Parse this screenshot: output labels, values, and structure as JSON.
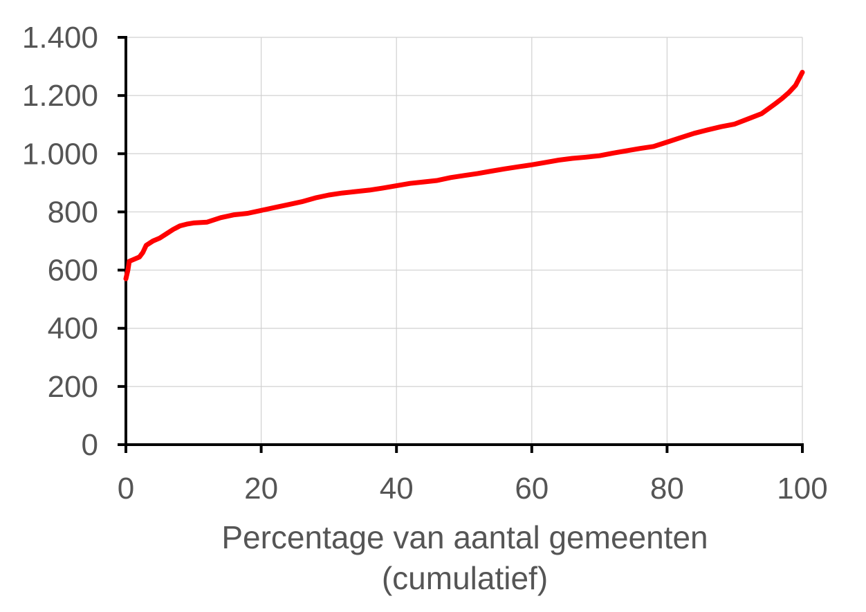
{
  "chart_data": {
    "type": "line",
    "xlabel_line1": "Percentage van aantal gemeenten",
    "xlabel_line2": "(cumulatief)",
    "ylabel": "",
    "xlim": [
      0,
      100
    ],
    "ylim": [
      0,
      1400
    ],
    "x_ticks": [
      0,
      20,
      40,
      60,
      80,
      100
    ],
    "x_tick_labels": [
      "0",
      "20",
      "40",
      "60",
      "80",
      "100"
    ],
    "y_ticks": [
      0,
      200,
      400,
      600,
      800,
      1000,
      1200,
      1400
    ],
    "y_tick_labels": [
      "0",
      "200",
      "400",
      "600",
      "800",
      "1.000",
      "1.200",
      "1.400"
    ],
    "grid": true,
    "series": [
      {
        "color": "#ff0000",
        "x": [
          0,
          0.3,
          0.5,
          1,
          2,
          2.5,
          3,
          4,
          5,
          6,
          7,
          8,
          9,
          10,
          12,
          14,
          16,
          18,
          20,
          22,
          24,
          26,
          28,
          30,
          32,
          34,
          36,
          38,
          40,
          42,
          44,
          46,
          48,
          50,
          52,
          54,
          56,
          58,
          60,
          62,
          64,
          66,
          68,
          70,
          72,
          74,
          76,
          78,
          80,
          82,
          84,
          86,
          88,
          90,
          92,
          94,
          95,
          96,
          97,
          98,
          99,
          100
        ],
        "y": [
          570,
          600,
          630,
          635,
          645,
          660,
          685,
          700,
          710,
          725,
          740,
          752,
          758,
          762,
          765,
          780,
          790,
          795,
          805,
          815,
          825,
          835,
          848,
          858,
          865,
          870,
          875,
          882,
          890,
          898,
          903,
          908,
          918,
          925,
          932,
          940,
          948,
          955,
          962,
          970,
          978,
          984,
          988,
          993,
          1002,
          1010,
          1018,
          1025,
          1040,
          1055,
          1070,
          1082,
          1093,
          1102,
          1120,
          1138,
          1155,
          1172,
          1190,
          1210,
          1235,
          1280
        ]
      }
    ]
  }
}
